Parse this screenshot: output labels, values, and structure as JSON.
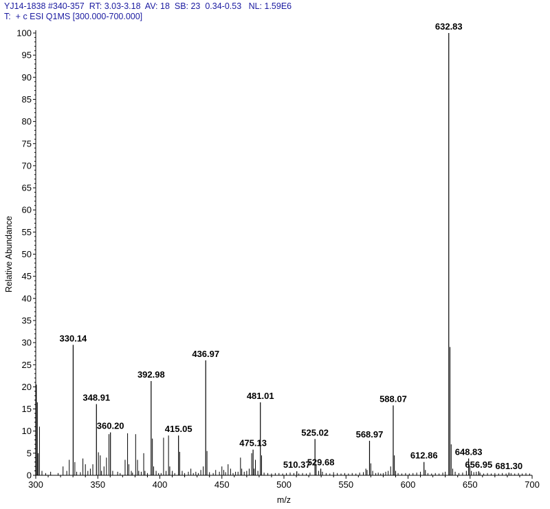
{
  "header": {
    "line1": "YJ14-1838 #340-357  RT: 3.03-3.18  AV: 18  SB: 23  0.34-0.53   NL: 1.59E6",
    "line2": "T:  + c ESI Q1MS [300.000-700.000]"
  },
  "colors": {
    "header_text": "#1a1aa0",
    "axis": "#000000",
    "spectrum": "#000000"
  },
  "chart_data": {
    "type": "bar",
    "title": "",
    "xlabel": "m/z",
    "ylabel": "Relative Abundance",
    "xlim": [
      300,
      700
    ],
    "ylim": [
      0,
      100
    ],
    "x_ticks": [
      300,
      350,
      400,
      450,
      500,
      550,
      600,
      650,
      700
    ],
    "y_ticks": [
      0,
      5,
      10,
      15,
      20,
      25,
      30,
      35,
      40,
      45,
      50,
      55,
      60,
      65,
      70,
      75,
      80,
      85,
      90,
      95,
      100
    ],
    "grid": false,
    "labeled_peaks": [
      {
        "mz": 632.83,
        "label": "632.83",
        "intensity": 100
      },
      {
        "mz": 330.14,
        "label": "330.14",
        "intensity": 29.5
      },
      {
        "mz": 436.97,
        "label": "436.97",
        "intensity": 26
      },
      {
        "mz": 392.98,
        "label": "392.98",
        "intensity": 21.3
      },
      {
        "mz": 481.01,
        "label": "481.01",
        "intensity": 16.5
      },
      {
        "mz": 348.91,
        "label": "348.91",
        "intensity": 16.1
      },
      {
        "mz": 588.07,
        "label": "588.07",
        "intensity": 15.8
      },
      {
        "mz": 360.2,
        "label": "360.20",
        "intensity": 9.7
      },
      {
        "mz": 415.05,
        "label": "415.05",
        "intensity": 9
      },
      {
        "mz": 525.02,
        "label": "525.02",
        "intensity": 8.2
      },
      {
        "mz": 568.97,
        "label": "568.97",
        "intensity": 7.8
      },
      {
        "mz": 475.13,
        "label": "475.13",
        "intensity": 5.8
      },
      {
        "mz": 612.86,
        "label": "612.86",
        "intensity": 3
      },
      {
        "mz": 648.83,
        "label": "648.83",
        "intensity": 3.8
      },
      {
        "mz": 510.37,
        "label": "510.37",
        "intensity": 0.9
      },
      {
        "mz": 529.68,
        "label": "529.68",
        "intensity": 1.5
      },
      {
        "mz": 656.95,
        "label": "656.95",
        "intensity": 0.9
      },
      {
        "mz": 681.3,
        "label": "681.30",
        "intensity": 0.6
      }
    ],
    "minor_peaks": [
      [
        300.5,
        20.5
      ],
      [
        301.3,
        16.5
      ],
      [
        302.0,
        5.0
      ],
      [
        303.0,
        11.0
      ],
      [
        305.0,
        1.0
      ],
      [
        308.0,
        0.5
      ],
      [
        312.0,
        0.8
      ],
      [
        318.0,
        0.5
      ],
      [
        322.0,
        2.0
      ],
      [
        325.0,
        1.0
      ],
      [
        327.0,
        3.5
      ],
      [
        331.5,
        3.0
      ],
      [
        333.0,
        0.8
      ],
      [
        336.0,
        0.7
      ],
      [
        338.0,
        3.8
      ],
      [
        340.0,
        2.5
      ],
      [
        342.0,
        1.0
      ],
      [
        344.0,
        1.5
      ],
      [
        346.0,
        2.5
      ],
      [
        350.5,
        5.2
      ],
      [
        352.0,
        4.5
      ],
      [
        353.0,
        1.0
      ],
      [
        355.0,
        2.0
      ],
      [
        357.0,
        4.0
      ],
      [
        359.0,
        9.3
      ],
      [
        362.0,
        1.0
      ],
      [
        366.0,
        0.8
      ],
      [
        368.0,
        0.5
      ],
      [
        372.0,
        3.5
      ],
      [
        374.0,
        9.5
      ],
      [
        375.0,
        2.5
      ],
      [
        377.0,
        1.0
      ],
      [
        378.0,
        0.6
      ],
      [
        380.5,
        9.3
      ],
      [
        382.0,
        3.5
      ],
      [
        383.0,
        1.0
      ],
      [
        385.0,
        0.8
      ],
      [
        387.0,
        5.0
      ],
      [
        388.0,
        1.0
      ],
      [
        390.0,
        0.5
      ],
      [
        394.0,
        8.3
      ],
      [
        395.0,
        2.0
      ],
      [
        397.0,
        1.0
      ],
      [
        399.0,
        0.5
      ],
      [
        401.0,
        0.5
      ],
      [
        403.0,
        8.5
      ],
      [
        405.0,
        1.0
      ],
      [
        407.0,
        9.0
      ],
      [
        408.0,
        2.0
      ],
      [
        410.0,
        1.0
      ],
      [
        412.0,
        0.5
      ],
      [
        416.0,
        5.3
      ],
      [
        418.0,
        1.0
      ],
      [
        420.0,
        0.5
      ],
      [
        423.0,
        0.8
      ],
      [
        425.0,
        1.5
      ],
      [
        427.0,
        0.5
      ],
      [
        429.0,
        0.8
      ],
      [
        431.0,
        0.5
      ],
      [
        433.0,
        1.2
      ],
      [
        435.0,
        2.0
      ],
      [
        438.0,
        5.5
      ],
      [
        440.0,
        0.7
      ],
      [
        443.0,
        0.5
      ],
      [
        445.0,
        1.2
      ],
      [
        448.0,
        0.8
      ],
      [
        450.0,
        2.0
      ],
      [
        451.5,
        1.2
      ],
      [
        453.0,
        0.7
      ],
      [
        455.0,
        2.5
      ],
      [
        457.0,
        1.5
      ],
      [
        459.0,
        0.5
      ],
      [
        461.0,
        0.8
      ],
      [
        463.0,
        0.8
      ],
      [
        465.0,
        4.0
      ],
      [
        466.0,
        1.5
      ],
      [
        468.0,
        0.8
      ],
      [
        470.0,
        1.0
      ],
      [
        472.0,
        1.5
      ],
      [
        474.0,
        5.0
      ],
      [
        476.0,
        1.5
      ],
      [
        477.0,
        3.5
      ],
      [
        479.0,
        1.0
      ],
      [
        482.0,
        4.5
      ],
      [
        484.0,
        0.6
      ],
      [
        487.0,
        0.5
      ],
      [
        490.0,
        0.4
      ],
      [
        493.0,
        0.5
      ],
      [
        496.0,
        0.5
      ],
      [
        499.0,
        0.4
      ],
      [
        502.0,
        0.5
      ],
      [
        505.0,
        0.6
      ],
      [
        508.0,
        0.5
      ],
      [
        512.0,
        0.4
      ],
      [
        515.0,
        0.5
      ],
      [
        518.0,
        0.4
      ],
      [
        521.0,
        0.6
      ],
      [
        526.0,
        2.5
      ],
      [
        528.0,
        1.0
      ],
      [
        531.0,
        0.8
      ],
      [
        534.0,
        0.5
      ],
      [
        537.0,
        0.4
      ],
      [
        540.0,
        0.7
      ],
      [
        543.0,
        0.5
      ],
      [
        546.0,
        0.4
      ],
      [
        549.0,
        0.5
      ],
      [
        552.0,
        0.4
      ],
      [
        555.0,
        0.5
      ],
      [
        558.0,
        0.4
      ],
      [
        561.0,
        0.6
      ],
      [
        564.0,
        0.7
      ],
      [
        566.0,
        1.5
      ],
      [
        567.0,
        1.2
      ],
      [
        570.0,
        2.7
      ],
      [
        571.5,
        1.0
      ],
      [
        574.0,
        0.5
      ],
      [
        576.0,
        0.6
      ],
      [
        578.0,
        0.4
      ],
      [
        580.0,
        0.5
      ],
      [
        582.0,
        0.8
      ],
      [
        584.0,
        1.0
      ],
      [
        586.0,
        2.0
      ],
      [
        589.0,
        4.5
      ],
      [
        590.0,
        1.0
      ],
      [
        592.0,
        0.5
      ],
      [
        595.0,
        0.4
      ],
      [
        598.0,
        0.5
      ],
      [
        601.0,
        0.4
      ],
      [
        604.0,
        0.5
      ],
      [
        607.0,
        0.6
      ],
      [
        610.0,
        0.8
      ],
      [
        614.0,
        1.2
      ],
      [
        616.0,
        0.5
      ],
      [
        619.0,
        0.4
      ],
      [
        622.0,
        0.5
      ],
      [
        625.0,
        0.4
      ],
      [
        628.0,
        0.6
      ],
      [
        630.0,
        0.8
      ],
      [
        633.8,
        29.0
      ],
      [
        634.8,
        7.0
      ],
      [
        636.0,
        1.5
      ],
      [
        638.0,
        0.8
      ],
      [
        641.0,
        0.5
      ],
      [
        644.0,
        0.6
      ],
      [
        647.0,
        1.0
      ],
      [
        649.8,
        2.0
      ],
      [
        651.0,
        1.0
      ],
      [
        653.0,
        0.7
      ],
      [
        655.0,
        0.8
      ],
      [
        658.0,
        0.6
      ],
      [
        661.0,
        0.4
      ],
      [
        664.0,
        0.5
      ],
      [
        667.0,
        0.4
      ],
      [
        670.0,
        0.5
      ],
      [
        673.0,
        0.4
      ],
      [
        676.0,
        0.5
      ],
      [
        679.0,
        0.4
      ],
      [
        683.0,
        0.5
      ],
      [
        686.0,
        0.4
      ],
      [
        689.0,
        0.5
      ],
      [
        692.0,
        0.4
      ],
      [
        695.0,
        0.5
      ],
      [
        698.0,
        0.4
      ]
    ]
  }
}
